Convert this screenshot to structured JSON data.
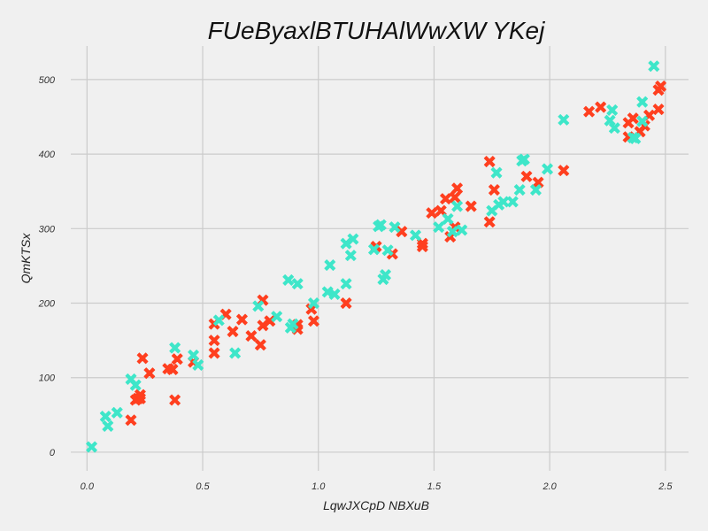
{
  "chart_data": {
    "type": "scatter",
    "title": "FUeByaxlBTUHAlWwXW  YKej",
    "xlabel": "LqwJXCpD NBXuB",
    "ylabel": "QmKTSx",
    "xlim": [
      -0.07,
      2.6
    ],
    "ylim": [
      -25,
      545
    ],
    "xticks": [
      0.0,
      0.5,
      1.0,
      1.5,
      2.0,
      2.5
    ],
    "xtick_labels": [
      "0.0",
      "0.5",
      "1.0",
      "1.5",
      "2.0",
      "2.5"
    ],
    "yticks": [
      0,
      100,
      200,
      300,
      400,
      500
    ],
    "ytick_labels": [
      "0",
      "100",
      "200",
      "300",
      "400",
      "500"
    ],
    "grid": true,
    "series": [
      {
        "color": "#ff3f1f",
        "marker": "X",
        "points": [
          [
            0.19,
            43
          ],
          [
            0.21,
            70
          ],
          [
            0.22,
            72
          ],
          [
            0.23,
            77
          ],
          [
            0.23,
            72
          ],
          [
            0.24,
            126
          ],
          [
            0.27,
            106
          ],
          [
            0.35,
            112
          ],
          [
            0.37,
            111
          ],
          [
            0.38,
            70
          ],
          [
            0.39,
            125
          ],
          [
            0.46,
            121
          ],
          [
            0.55,
            133
          ],
          [
            0.55,
            150
          ],
          [
            0.55,
            172
          ],
          [
            0.6,
            185
          ],
          [
            0.63,
            162
          ],
          [
            0.67,
            178
          ],
          [
            0.71,
            156
          ],
          [
            0.75,
            144
          ],
          [
            0.76,
            170
          ],
          [
            0.76,
            204
          ],
          [
            0.79,
            176
          ],
          [
            0.91,
            171
          ],
          [
            0.91,
            165
          ],
          [
            0.97,
            192
          ],
          [
            0.98,
            176
          ],
          [
            1.12,
            200
          ],
          [
            1.25,
            276
          ],
          [
            1.32,
            266
          ],
          [
            1.36,
            296
          ],
          [
            1.45,
            280
          ],
          [
            1.45,
            276
          ],
          [
            1.49,
            321
          ],
          [
            1.53,
            324
          ],
          [
            1.55,
            340
          ],
          [
            1.57,
            289
          ],
          [
            1.59,
            302
          ],
          [
            1.59,
            342
          ],
          [
            1.6,
            354
          ],
          [
            1.66,
            330
          ],
          [
            1.74,
            390
          ],
          [
            1.74,
            309
          ],
          [
            1.76,
            352
          ],
          [
            1.9,
            370
          ],
          [
            1.95,
            362
          ],
          [
            2.06,
            378
          ],
          [
            2.17,
            457
          ],
          [
            2.22,
            463
          ],
          [
            2.34,
            423
          ],
          [
            2.34,
            442
          ],
          [
            2.36,
            448
          ],
          [
            2.39,
            430
          ],
          [
            2.41,
            438
          ],
          [
            2.43,
            452
          ],
          [
            2.47,
            460
          ],
          [
            2.47,
            486
          ],
          [
            2.48,
            491
          ]
        ]
      },
      {
        "color": "#3ee6c9",
        "marker": "X",
        "points": [
          [
            0.02,
            7
          ],
          [
            0.08,
            48
          ],
          [
            0.09,
            35
          ],
          [
            0.13,
            53
          ],
          [
            0.19,
            98
          ],
          [
            0.21,
            90
          ],
          [
            0.38,
            140
          ],
          [
            0.46,
            130
          ],
          [
            0.48,
            117
          ],
          [
            0.57,
            177
          ],
          [
            0.64,
            133
          ],
          [
            0.74,
            196
          ],
          [
            0.82,
            182
          ],
          [
            0.87,
            231
          ],
          [
            0.88,
            167
          ],
          [
            0.89,
            172
          ],
          [
            0.91,
            226
          ],
          [
            0.98,
            200
          ],
          [
            1.04,
            215
          ],
          [
            1.05,
            251
          ],
          [
            1.07,
            212
          ],
          [
            1.12,
            280
          ],
          [
            1.12,
            226
          ],
          [
            1.14,
            264
          ],
          [
            1.15,
            286
          ],
          [
            1.24,
            272
          ],
          [
            1.26,
            303
          ],
          [
            1.27,
            305
          ],
          [
            1.28,
            232
          ],
          [
            1.29,
            238
          ],
          [
            1.3,
            271
          ],
          [
            1.33,
            302
          ],
          [
            1.42,
            291
          ],
          [
            1.52,
            302
          ],
          [
            1.56,
            313
          ],
          [
            1.58,
            296
          ],
          [
            1.6,
            330
          ],
          [
            1.62,
            298
          ],
          [
            1.75,
            324
          ],
          [
            1.77,
            375
          ],
          [
            1.78,
            332
          ],
          [
            1.8,
            336
          ],
          [
            1.84,
            336
          ],
          [
            1.87,
            352
          ],
          [
            1.88,
            391
          ],
          [
            1.89,
            393
          ],
          [
            1.94,
            352
          ],
          [
            1.99,
            380
          ],
          [
            2.06,
            446
          ],
          [
            2.26,
            445
          ],
          [
            2.27,
            459
          ],
          [
            2.28,
            435
          ],
          [
            2.36,
            422
          ],
          [
            2.37,
            421
          ],
          [
            2.4,
            444
          ],
          [
            2.4,
            470
          ],
          [
            2.45,
            518
          ]
        ]
      }
    ]
  }
}
